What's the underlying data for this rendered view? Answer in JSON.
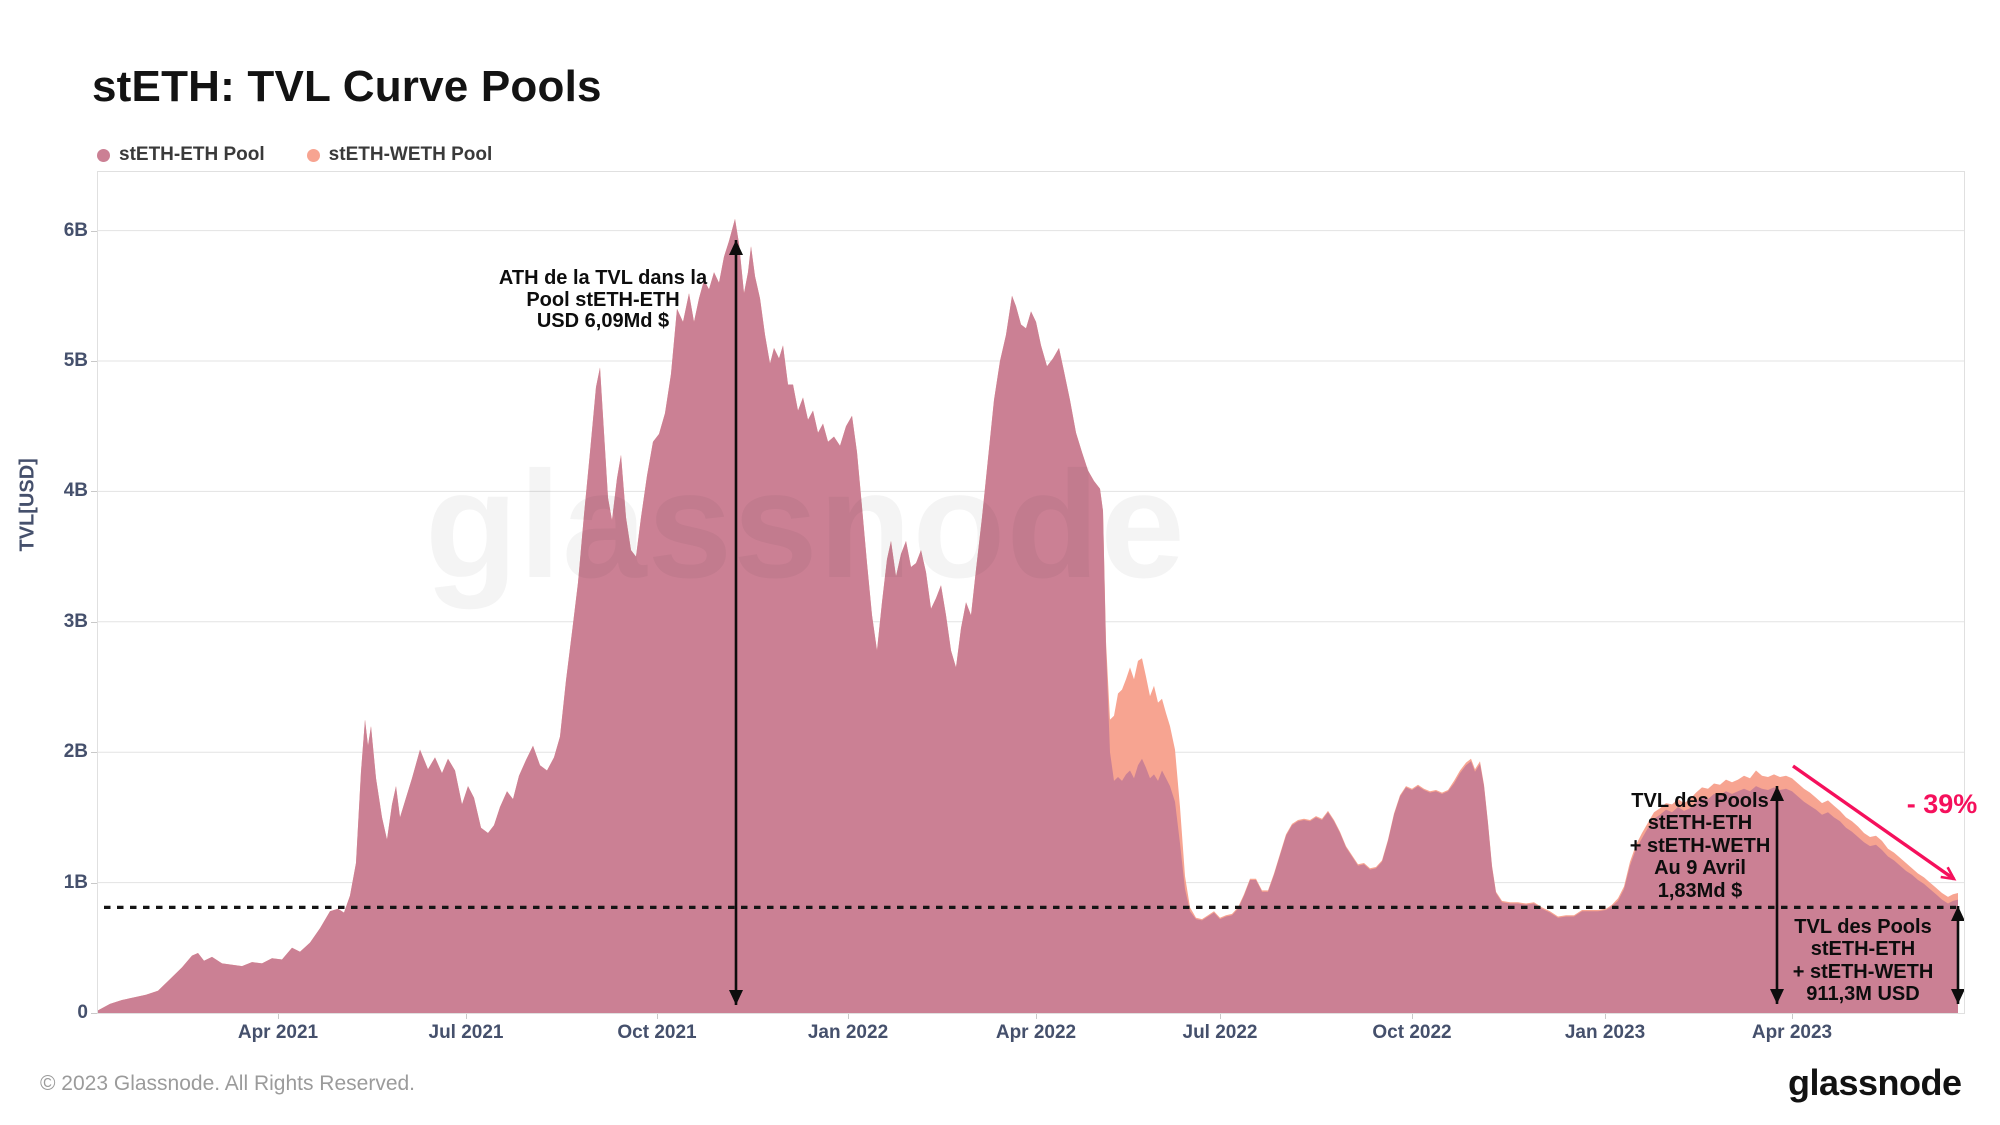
{
  "header": {
    "title": "stETH: TVL Curve Pools"
  },
  "legend": {
    "items": [
      {
        "label": "stETH-ETH Pool",
        "color": "#c9839a"
      },
      {
        "label": "stETH-WETH Pool",
        "color": "#f6a violet"
      }
    ]
  },
  "watermark": "glassnode",
  "y_axis": {
    "title": "TVL[USD]",
    "ticks": [
      "6B",
      "5B",
      "4B",
      "3B",
      "2B",
      "1B",
      "0"
    ]
  },
  "x_axis": {
    "ticks": [
      "Apr 2021",
      "Jul 2021",
      "Oct 2021",
      "Jan 2022",
      "Apr 2022",
      "Jul 2022",
      "Oct 2022",
      "Jan 2023",
      "Apr 2023"
    ]
  },
  "annotations": {
    "ath": {
      "lines": [
        "ATH de la TVL dans la",
        "Pool stETH-ETH",
        "USD 6,09Md $"
      ]
    },
    "apr9": {
      "lines": [
        "TVL des Pools",
        "stETH-ETH",
        "+ stETH-WETH",
        "Au 9 Avril",
        "1,83Md $"
      ]
    },
    "end": {
      "lines": [
        "TVL des Pools",
        "stETH-ETH",
        "+ stETH-WETH",
        "911,3M USD"
      ]
    },
    "decline": {
      "label": "- 39%",
      "color": "#f5105c"
    }
  },
  "footer": {
    "copyright": "© 2023 Glassnode. All Rights Reserved.",
    "logo_text": "glassnode"
  },
  "chart_data": {
    "type": "area",
    "stacked": true,
    "title": "stETH: TVL Curve Pools",
    "ylabel": "TVL[USD]",
    "y_unit": "billions USD",
    "ylim": [
      0,
      6.45
    ],
    "y_ticks_b": [
      0,
      1,
      2,
      3,
      4,
      5,
      6
    ],
    "x_range": [
      "2021-01-05",
      "2023-06-21"
    ],
    "x_ticks": [
      "Apr 2021",
      "Jul 2021",
      "Oct 2021",
      "Jan 2022",
      "Apr 2022",
      "Jul 2022",
      "Oct 2022",
      "Jan 2023",
      "Apr 2023"
    ],
    "grid": true,
    "legend_position": "top-left",
    "dotted_guide_level_b": 0.81,
    "ath_value_b": 6.09,
    "apr9_total_b": 1.83,
    "end_total_b": 0.9113,
    "decline_pct": -39,
    "series": [
      {
        "name": "stETH-ETH Pool",
        "color": "#cb8094"
      },
      {
        "name": "stETH-WETH Pool",
        "color": "#f7a491"
      }
    ],
    "points_format": [
      "x_px_0_to_1866_along_time_axis",
      "stETH-ETH_pool_TVL_B",
      "stETH-WETH_pool_TVL_B"
    ],
    "points": [
      [
        0,
        0.02,
        0
      ],
      [
        12,
        0.07,
        0
      ],
      [
        24,
        0.1,
        0
      ],
      [
        36,
        0.12,
        0
      ],
      [
        48,
        0.14,
        0
      ],
      [
        60,
        0.17,
        0
      ],
      [
        72,
        0.26,
        0
      ],
      [
        84,
        0.35,
        0
      ],
      [
        94,
        0.44,
        0
      ],
      [
        100,
        0.46,
        0
      ],
      [
        106,
        0.4,
        0
      ],
      [
        114,
        0.43,
        0
      ],
      [
        124,
        0.38,
        0
      ],
      [
        134,
        0.37,
        0
      ],
      [
        144,
        0.36,
        0
      ],
      [
        154,
        0.39,
        0
      ],
      [
        164,
        0.38,
        0
      ],
      [
        174,
        0.42,
        0
      ],
      [
        184,
        0.41,
        0
      ],
      [
        194,
        0.5,
        0
      ],
      [
        202,
        0.47,
        0
      ],
      [
        212,
        0.54,
        0
      ],
      [
        222,
        0.65,
        0
      ],
      [
        232,
        0.78,
        0
      ],
      [
        240,
        0.8,
        0
      ],
      [
        246,
        0.77,
        0
      ],
      [
        252,
        0.9,
        0
      ],
      [
        258,
        1.15,
        0
      ],
      [
        263,
        1.85,
        0
      ],
      [
        267,
        2.25,
        0
      ],
      [
        270,
        2.05,
        0
      ],
      [
        273,
        2.2,
        0
      ],
      [
        278,
        1.8,
        0
      ],
      [
        284,
        1.5,
        0
      ],
      [
        289,
        1.33,
        0
      ],
      [
        294,
        1.6,
        0
      ],
      [
        298,
        1.74,
        0
      ],
      [
        302,
        1.5,
        0
      ],
      [
        308,
        1.65,
        0
      ],
      [
        314,
        1.8,
        0
      ],
      [
        322,
        2.02,
        0
      ],
      [
        330,
        1.87,
        0
      ],
      [
        337,
        1.96,
        0
      ],
      [
        344,
        1.84,
        0
      ],
      [
        350,
        1.95,
        0
      ],
      [
        357,
        1.86,
        0
      ],
      [
        364,
        1.6,
        0
      ],
      [
        370,
        1.74,
        0
      ],
      [
        376,
        1.65,
        0
      ],
      [
        383,
        1.42,
        0
      ],
      [
        390,
        1.38,
        0
      ],
      [
        396,
        1.44,
        0
      ],
      [
        402,
        1.58,
        0
      ],
      [
        409,
        1.7,
        0
      ],
      [
        415,
        1.64,
        0
      ],
      [
        421,
        1.82,
        0
      ],
      [
        428,
        1.94,
        0
      ],
      [
        435,
        2.05,
        0
      ],
      [
        442,
        1.9,
        0
      ],
      [
        449,
        1.86,
        0
      ],
      [
        456,
        1.96,
        0
      ],
      [
        462,
        2.12,
        0
      ],
      [
        468,
        2.55,
        0
      ],
      [
        474,
        2.92,
        0
      ],
      [
        480,
        3.3,
        0
      ],
      [
        486,
        3.82,
        0
      ],
      [
        492,
        4.3,
        0
      ],
      [
        498,
        4.8,
        0
      ],
      [
        502,
        4.95,
        0
      ],
      [
        506,
        4.45,
        0
      ],
      [
        510,
        3.95,
        0
      ],
      [
        514,
        3.78,
        0
      ],
      [
        519,
        4.1,
        0
      ],
      [
        523,
        4.28,
        0
      ],
      [
        528,
        3.8,
        0
      ],
      [
        533,
        3.55,
        0
      ],
      [
        538,
        3.5,
        0
      ],
      [
        543,
        3.8,
        0
      ],
      [
        549,
        4.12,
        0
      ],
      [
        555,
        4.38,
        0
      ],
      [
        561,
        4.44,
        0
      ],
      [
        567,
        4.6,
        0
      ],
      [
        573,
        4.9,
        0
      ],
      [
        579,
        5.4,
        0
      ],
      [
        585,
        5.3,
        0
      ],
      [
        591,
        5.52,
        0
      ],
      [
        596,
        5.3,
        0
      ],
      [
        601,
        5.48,
        0
      ],
      [
        606,
        5.62,
        0
      ],
      [
        611,
        5.55,
        0
      ],
      [
        616,
        5.68,
        0
      ],
      [
        621,
        5.6,
        0
      ],
      [
        626,
        5.8,
        0
      ],
      [
        631,
        5.92,
        0
      ],
      [
        637,
        6.09,
        0
      ],
      [
        641,
        5.9,
        0
      ],
      [
        646,
        5.52,
        0
      ],
      [
        650,
        5.68,
        0
      ],
      [
        653,
        5.88,
        0
      ],
      [
        657,
        5.65,
        0
      ],
      [
        662,
        5.48,
        0
      ],
      [
        667,
        5.2,
        0
      ],
      [
        672,
        4.98,
        0
      ],
      [
        676,
        5.1,
        0
      ],
      [
        681,
        5.02,
        0
      ],
      [
        685,
        5.12,
        0
      ],
      [
        690,
        4.82,
        0
      ],
      [
        695,
        4.82,
        0
      ],
      [
        700,
        4.62,
        0
      ],
      [
        705,
        4.72,
        0
      ],
      [
        710,
        4.55,
        0
      ],
      [
        715,
        4.62,
        0
      ],
      [
        720,
        4.45,
        0
      ],
      [
        725,
        4.52,
        0
      ],
      [
        730,
        4.38,
        0
      ],
      [
        736,
        4.42,
        0
      ],
      [
        742,
        4.35,
        0
      ],
      [
        748,
        4.5,
        0
      ],
      [
        754,
        4.58,
        0
      ],
      [
        759,
        4.3,
        0
      ],
      [
        764,
        3.88,
        0
      ],
      [
        769,
        3.45,
        0
      ],
      [
        774,
        3.05,
        0
      ],
      [
        779,
        2.78,
        0
      ],
      [
        784,
        3.15,
        0
      ],
      [
        789,
        3.48,
        0
      ],
      [
        793,
        3.62,
        0
      ],
      [
        798,
        3.35,
        0
      ],
      [
        803,
        3.52,
        0
      ],
      [
        808,
        3.62,
        0
      ],
      [
        813,
        3.42,
        0
      ],
      [
        818,
        3.45,
        0
      ],
      [
        823,
        3.55,
        0
      ],
      [
        828,
        3.38,
        0
      ],
      [
        833,
        3.1,
        0
      ],
      [
        838,
        3.18,
        0
      ],
      [
        843,
        3.28,
        0
      ],
      [
        848,
        3.05,
        0
      ],
      [
        853,
        2.78,
        0
      ],
      [
        858,
        2.65,
        0
      ],
      [
        863,
        2.95,
        0
      ],
      [
        868,
        3.15,
        0
      ],
      [
        873,
        3.05,
        0
      ],
      [
        878,
        3.4,
        0
      ],
      [
        884,
        3.8,
        0
      ],
      [
        890,
        4.25,
        0
      ],
      [
        896,
        4.7,
        0
      ],
      [
        902,
        5.0,
        0
      ],
      [
        908,
        5.2,
        0
      ],
      [
        914,
        5.5,
        0
      ],
      [
        918,
        5.42,
        0
      ],
      [
        923,
        5.28,
        0
      ],
      [
        928,
        5.25,
        0
      ],
      [
        933,
        5.38,
        0
      ],
      [
        938,
        5.3,
        0
      ],
      [
        943,
        5.12,
        0
      ],
      [
        949,
        4.96,
        0
      ],
      [
        955,
        5.02,
        0
      ],
      [
        961,
        5.1,
        0
      ],
      [
        966,
        4.92,
        0
      ],
      [
        972,
        4.7,
        0
      ],
      [
        978,
        4.45,
        0
      ],
      [
        984,
        4.3,
        0
      ],
      [
        990,
        4.16,
        0
      ],
      [
        996,
        4.08,
        0
      ],
      [
        1002,
        4.02,
        0
      ],
      [
        1005,
        3.85,
        0
      ],
      [
        1008,
        2.8,
        0.05
      ],
      [
        1012,
        2.0,
        0.25
      ],
      [
        1016,
        1.78,
        0.5
      ],
      [
        1020,
        1.81,
        0.64
      ],
      [
        1024,
        1.78,
        0.7
      ],
      [
        1028,
        1.83,
        0.73
      ],
      [
        1032,
        1.86,
        0.79
      ],
      [
        1036,
        1.8,
        0.76
      ],
      [
        1040,
        1.9,
        0.8
      ],
      [
        1044,
        1.95,
        0.77
      ],
      [
        1048,
        1.88,
        0.7
      ],
      [
        1052,
        1.8,
        0.63
      ],
      [
        1056,
        1.83,
        0.68
      ],
      [
        1060,
        1.78,
        0.6
      ],
      [
        1064,
        1.86,
        0.55
      ],
      [
        1068,
        1.8,
        0.5
      ],
      [
        1072,
        1.74,
        0.46
      ],
      [
        1077,
        1.62,
        0.4
      ],
      [
        1082,
        1.3,
        0.28
      ],
      [
        1087,
        0.95,
        0.1
      ],
      [
        1092,
        0.78,
        0.03
      ],
      [
        1098,
        0.72,
        0.01
      ],
      [
        1104,
        0.71,
        0.01
      ],
      [
        1110,
        0.74,
        0.01
      ],
      [
        1116,
        0.77,
        0.01
      ],
      [
        1122,
        0.72,
        0.01
      ],
      [
        1128,
        0.74,
        0.01
      ],
      [
        1134,
        0.75,
        0.01
      ],
      [
        1140,
        0.8,
        0.01
      ],
      [
        1146,
        0.9,
        0.01
      ],
      [
        1152,
        1.02,
        0.01
      ],
      [
        1158,
        1.02,
        0.01
      ],
      [
        1164,
        0.93,
        0.01
      ],
      [
        1170,
        0.93,
        0.01
      ],
      [
        1176,
        1.06,
        0.01
      ],
      [
        1182,
        1.21,
        0.01
      ],
      [
        1188,
        1.36,
        0.01
      ],
      [
        1194,
        1.44,
        0.01
      ],
      [
        1200,
        1.47,
        0.01
      ],
      [
        1206,
        1.48,
        0.01
      ],
      [
        1212,
        1.47,
        0.01
      ],
      [
        1218,
        1.5,
        0.01
      ],
      [
        1224,
        1.48,
        0.01
      ],
      [
        1230,
        1.54,
        0.01
      ],
      [
        1236,
        1.47,
        0.01
      ],
      [
        1242,
        1.38,
        0.01
      ],
      [
        1248,
        1.27,
        0.01
      ],
      [
        1254,
        1.2,
        0.01
      ],
      [
        1260,
        1.13,
        0.01
      ],
      [
        1266,
        1.14,
        0.01
      ],
      [
        1272,
        1.1,
        0.01
      ],
      [
        1278,
        1.11,
        0.01
      ],
      [
        1284,
        1.16,
        0.01
      ],
      [
        1290,
        1.32,
        0.01
      ],
      [
        1296,
        1.52,
        0.01
      ],
      [
        1302,
        1.66,
        0.01
      ],
      [
        1308,
        1.73,
        0.01
      ],
      [
        1314,
        1.71,
        0.01
      ],
      [
        1320,
        1.74,
        0.01
      ],
      [
        1326,
        1.71,
        0.01
      ],
      [
        1332,
        1.69,
        0.01
      ],
      [
        1338,
        1.7,
        0.01
      ],
      [
        1344,
        1.68,
        0.01
      ],
      [
        1350,
        1.7,
        0.01
      ],
      [
        1356,
        1.76,
        0.02
      ],
      [
        1362,
        1.84,
        0.02
      ],
      [
        1368,
        1.9,
        0.02
      ],
      [
        1373,
        1.93,
        0.02
      ],
      [
        1377,
        1.85,
        0.02
      ],
      [
        1382,
        1.91,
        0.02
      ],
      [
        1386,
        1.74,
        0.01
      ],
      [
        1390,
        1.45,
        0.01
      ],
      [
        1394,
        1.12,
        0.01
      ],
      [
        1398,
        0.92,
        0.01
      ],
      [
        1404,
        0.85,
        0.01
      ],
      [
        1412,
        0.84,
        0.01
      ],
      [
        1420,
        0.84,
        0.01
      ],
      [
        1428,
        0.83,
        0.01
      ],
      [
        1436,
        0.84,
        0.01
      ],
      [
        1444,
        0.8,
        0.01
      ],
      [
        1452,
        0.77,
        0.01
      ],
      [
        1460,
        0.73,
        0.01
      ],
      [
        1468,
        0.74,
        0.01
      ],
      [
        1476,
        0.74,
        0.01
      ],
      [
        1484,
        0.78,
        0.01
      ],
      [
        1492,
        0.78,
        0.01
      ],
      [
        1500,
        0.78,
        0.01
      ],
      [
        1508,
        0.79,
        0.01
      ],
      [
        1514,
        0.82,
        0.01
      ],
      [
        1520,
        0.86,
        0.02
      ],
      [
        1526,
        0.95,
        0.02
      ],
      [
        1532,
        1.13,
        0.03
      ],
      [
        1538,
        1.26,
        0.03
      ],
      [
        1544,
        1.34,
        0.04
      ],
      [
        1550,
        1.42,
        0.04
      ],
      [
        1556,
        1.49,
        0.05
      ],
      [
        1562,
        1.52,
        0.05
      ],
      [
        1568,
        1.56,
        0.05
      ],
      [
        1574,
        1.54,
        0.06
      ],
      [
        1580,
        1.58,
        0.06
      ],
      [
        1586,
        1.55,
        0.06
      ],
      [
        1592,
        1.57,
        0.07
      ],
      [
        1598,
        1.62,
        0.07
      ],
      [
        1604,
        1.66,
        0.07
      ],
      [
        1610,
        1.64,
        0.08
      ],
      [
        1616,
        1.68,
        0.08
      ],
      [
        1622,
        1.67,
        0.08
      ],
      [
        1628,
        1.7,
        0.09
      ],
      [
        1634,
        1.68,
        0.09
      ],
      [
        1640,
        1.7,
        0.09
      ],
      [
        1646,
        1.72,
        0.1
      ],
      [
        1652,
        1.7,
        0.1
      ],
      [
        1658,
        1.74,
        0.12
      ],
      [
        1664,
        1.72,
        0.1
      ],
      [
        1670,
        1.71,
        0.1
      ],
      [
        1676,
        1.73,
        0.1
      ],
      [
        1682,
        1.71,
        0.1
      ],
      [
        1688,
        1.72,
        0.1
      ],
      [
        1694,
        1.7,
        0.1
      ],
      [
        1700,
        1.66,
        0.1
      ],
      [
        1706,
        1.62,
        0.1
      ],
      [
        1712,
        1.59,
        0.1
      ],
      [
        1718,
        1.56,
        0.09
      ],
      [
        1724,
        1.52,
        0.09
      ],
      [
        1730,
        1.54,
        0.09
      ],
      [
        1736,
        1.5,
        0.09
      ],
      [
        1742,
        1.47,
        0.08
      ],
      [
        1748,
        1.42,
        0.08
      ],
      [
        1754,
        1.39,
        0.08
      ],
      [
        1760,
        1.35,
        0.08
      ],
      [
        1766,
        1.31,
        0.07
      ],
      [
        1772,
        1.28,
        0.07
      ],
      [
        1778,
        1.29,
        0.07
      ],
      [
        1784,
        1.25,
        0.07
      ],
      [
        1790,
        1.2,
        0.06
      ],
      [
        1796,
        1.17,
        0.06
      ],
      [
        1802,
        1.13,
        0.06
      ],
      [
        1808,
        1.09,
        0.06
      ],
      [
        1814,
        1.06,
        0.05
      ],
      [
        1820,
        1.02,
        0.05
      ],
      [
        1826,
        0.99,
        0.05
      ],
      [
        1832,
        0.95,
        0.05
      ],
      [
        1838,
        0.91,
        0.05
      ],
      [
        1844,
        0.87,
        0.05
      ],
      [
        1850,
        0.84,
        0.05
      ],
      [
        1855,
        0.86,
        0.05
      ],
      [
        1860,
        0.87,
        0.05
      ]
    ]
  }
}
